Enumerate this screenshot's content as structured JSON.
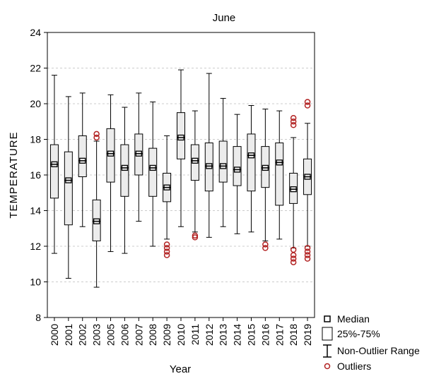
{
  "chart_data": {
    "type": "box",
    "title": "June",
    "xlabel": "Year",
    "ylabel": "TEMPERATURE",
    "ylim": [
      8,
      24
    ],
    "yticks": [
      8,
      10,
      12,
      14,
      16,
      18,
      20,
      22,
      24
    ],
    "grid": "horizontal dashed",
    "legend_position": "bottom-right",
    "legend": {
      "median": "Median",
      "box": "25%-75%",
      "whisker": "Non-Outlier Range",
      "outliers": "Outliers"
    },
    "colors": {
      "outlier": "#b22222",
      "box_fill": "#ececec",
      "grid": "#cccccc"
    },
    "categories": [
      "2000",
      "2001",
      "2002",
      "2003",
      "2005",
      "2006",
      "2007",
      "2008",
      "2009",
      "2010",
      "2011",
      "2012",
      "2013",
      "2014",
      "2015",
      "2016",
      "2017",
      "2018",
      "2019"
    ],
    "boxes": [
      {
        "min": 11.6,
        "q1": 14.7,
        "median": 16.6,
        "q3": 17.7,
        "max": 21.6,
        "outliers": []
      },
      {
        "min": 10.2,
        "q1": 13.2,
        "median": 15.7,
        "q3": 17.3,
        "max": 20.4,
        "outliers": []
      },
      {
        "min": 13.1,
        "q1": 15.9,
        "median": 16.8,
        "q3": 18.2,
        "max": 20.6,
        "outliers": []
      },
      {
        "min": 9.7,
        "q1": 12.3,
        "median": 13.4,
        "q3": 14.6,
        "max": 17.9,
        "outliers": [
          18.1,
          18.3
        ]
      },
      {
        "min": 11.7,
        "q1": 15.6,
        "median": 17.2,
        "q3": 18.6,
        "max": 20.5,
        "outliers": []
      },
      {
        "min": 11.6,
        "q1": 14.8,
        "median": 16.4,
        "q3": 17.7,
        "max": 19.8,
        "outliers": []
      },
      {
        "min": 13.4,
        "q1": 16.0,
        "median": 17.2,
        "q3": 18.3,
        "max": 20.6,
        "outliers": []
      },
      {
        "min": 12.0,
        "q1": 14.8,
        "median": 16.4,
        "q3": 17.5,
        "max": 20.1,
        "outliers": []
      },
      {
        "min": 12.4,
        "q1": 14.5,
        "median": 15.3,
        "q3": 16.1,
        "max": 18.2,
        "outliers": [
          12.1,
          11.9,
          11.7,
          11.5
        ]
      },
      {
        "min": 13.1,
        "q1": 16.9,
        "median": 18.1,
        "q3": 19.5,
        "max": 21.9,
        "outliers": []
      },
      {
        "min": 12.8,
        "q1": 15.7,
        "median": 16.8,
        "q3": 17.7,
        "max": 19.6,
        "outliers": [
          12.6,
          12.5
        ]
      },
      {
        "min": 12.5,
        "q1": 15.1,
        "median": 16.5,
        "q3": 17.8,
        "max": 21.7,
        "outliers": []
      },
      {
        "min": 13.1,
        "q1": 15.6,
        "median": 16.5,
        "q3": 17.9,
        "max": 20.3,
        "outliers": []
      },
      {
        "min": 12.7,
        "q1": 15.4,
        "median": 16.3,
        "q3": 17.6,
        "max": 19.4,
        "outliers": []
      },
      {
        "min": 12.8,
        "q1": 15.1,
        "median": 17.1,
        "q3": 18.3,
        "max": 19.9,
        "outliers": []
      },
      {
        "min": 12.3,
        "q1": 15.3,
        "median": 16.4,
        "q3": 17.6,
        "max": 19.7,
        "outliers": [
          12.1,
          11.9
        ]
      },
      {
        "min": 12.4,
        "q1": 14.3,
        "median": 16.7,
        "q3": 17.8,
        "max": 19.6,
        "outliers": []
      },
      {
        "min": 11.9,
        "q1": 14.4,
        "median": 15.2,
        "q3": 16.1,
        "max": 18.1,
        "outliers": [
          19.2,
          19.0,
          18.8,
          11.8,
          11.5,
          11.3,
          11.1
        ]
      },
      {
        "min": 12.0,
        "q1": 14.9,
        "median": 15.9,
        "q3": 16.9,
        "max": 18.9,
        "outliers": [
          20.1,
          19.9,
          11.9,
          11.7,
          11.5,
          11.3
        ]
      }
    ]
  }
}
